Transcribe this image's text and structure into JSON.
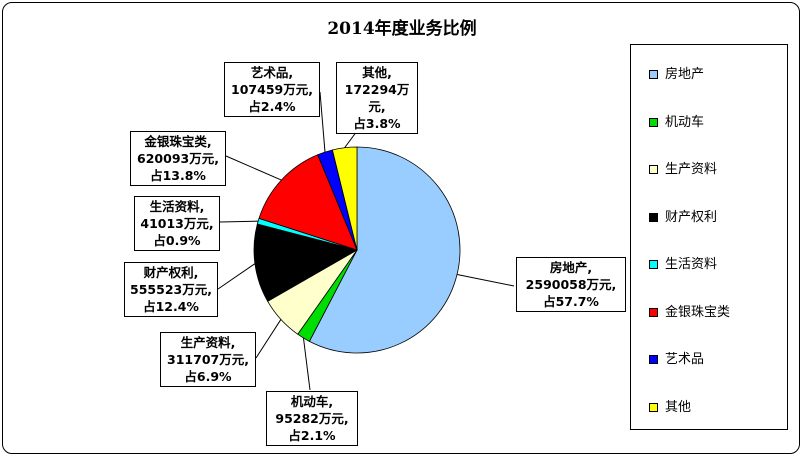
{
  "chart_data": {
    "type": "pie",
    "title": "2014年度业务比例",
    "legend_position": "right",
    "slices": [
      {
        "name": "房地产",
        "value": 2590058,
        "percent": 57.7,
        "color": "#99ccff",
        "label": [
          "房地产,",
          "2590058万元,",
          "占57.7%"
        ]
      },
      {
        "name": "机动车",
        "value": 95282,
        "percent": 2.1,
        "color": "#00dd00",
        "label": [
          "机动车,",
          "95282万元,",
          "占2.1%"
        ]
      },
      {
        "name": "生产资料",
        "value": 311707,
        "percent": 6.9,
        "color": "#ffffcc",
        "label": [
          "生产资料,",
          "311707万元,",
          "占6.9%"
        ]
      },
      {
        "name": "财产权利",
        "value": 555523,
        "percent": 12.4,
        "color": "#000000",
        "label": [
          "财产权利,",
          "555523万元,",
          "占12.4%"
        ]
      },
      {
        "name": "生活资料",
        "value": 41013,
        "percent": 0.9,
        "color": "#00ffff",
        "label": [
          "生活资料,",
          "41013万元,",
          "占0.9%"
        ]
      },
      {
        "name": "金银珠宝类",
        "value": 620093,
        "percent": 13.8,
        "color": "#ff0000",
        "label": [
          "金银珠宝类,",
          "620093万元,",
          "占13.8%"
        ]
      },
      {
        "name": "艺术品",
        "value": 107459,
        "percent": 2.4,
        "color": "#0000ff",
        "label": [
          "艺术品,",
          "107459万元,",
          "占2.4%"
        ]
      },
      {
        "name": "其他",
        "value": 172294,
        "percent": 3.8,
        "color": "#ffff00",
        "label": [
          "其他,",
          "172294万元,",
          "占3.8%"
        ]
      }
    ]
  }
}
